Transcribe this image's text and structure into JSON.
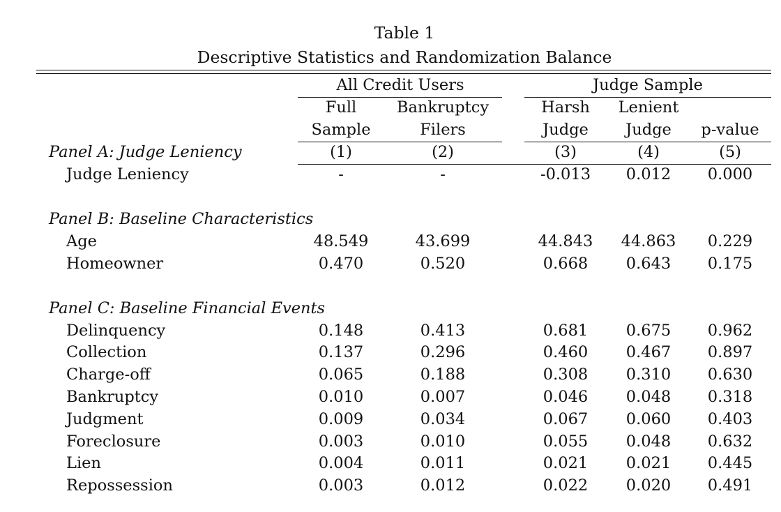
{
  "table": {
    "title": "Table 1",
    "subtitle": "Descriptive Statistics and Randomization Balance",
    "groups": {
      "all_credit_users": "All Credit Users",
      "judge_sample": "Judge Sample"
    },
    "columns": [
      {
        "line1": "Full",
        "line2": "Sample",
        "num": "(1)"
      },
      {
        "line1": "Bankruptcy",
        "line2": "Filers",
        "num": "(2)"
      },
      {
        "line1": "Harsh",
        "line2": "Judge",
        "num": "(3)"
      },
      {
        "line1": "Lenient",
        "line2": "Judge",
        "num": "(4)"
      },
      {
        "line1": "",
        "line2": "p-value",
        "num": "(5)"
      }
    ],
    "panels": {
      "a": {
        "title": "Panel A: Judge Leniency",
        "rows": [
          {
            "label": "Judge Leniency",
            "values": [
              "-",
              "-",
              "-0.013",
              "0.012",
              "0.000"
            ]
          }
        ]
      },
      "b": {
        "title": "Panel B: Baseline Characteristics",
        "rows": [
          {
            "label": "Age",
            "values": [
              "48.549",
              "43.699",
              "44.843",
              "44.863",
              "0.229"
            ]
          },
          {
            "label": "Homeowner",
            "values": [
              "0.470",
              "0.520",
              "0.668",
              "0.643",
              "0.175"
            ]
          }
        ]
      },
      "c": {
        "title": "Panel C: Baseline Financial Events",
        "rows": [
          {
            "label": "Delinquency",
            "values": [
              "0.148",
              "0.413",
              "0.681",
              "0.675",
              "0.962"
            ]
          },
          {
            "label": "Collection",
            "values": [
              "0.137",
              "0.296",
              "0.460",
              "0.467",
              "0.897"
            ]
          },
          {
            "label": "Charge-off",
            "values": [
              "0.065",
              "0.188",
              "0.308",
              "0.310",
              "0.630"
            ]
          },
          {
            "label": "Bankruptcy",
            "values": [
              "0.010",
              "0.007",
              "0.046",
              "0.048",
              "0.318"
            ]
          },
          {
            "label": "Judgment",
            "values": [
              "0.009",
              "0.034",
              "0.067",
              "0.060",
              "0.403"
            ]
          },
          {
            "label": "Foreclosure",
            "values": [
              "0.003",
              "0.010",
              "0.055",
              "0.048",
              "0.632"
            ]
          },
          {
            "label": "Lien",
            "values": [
              "0.004",
              "0.011",
              "0.021",
              "0.021",
              "0.445"
            ]
          },
          {
            "label": "Repossession",
            "values": [
              "0.003",
              "0.012",
              "0.022",
              "0.020",
              "0.491"
            ]
          }
        ]
      }
    }
  }
}
